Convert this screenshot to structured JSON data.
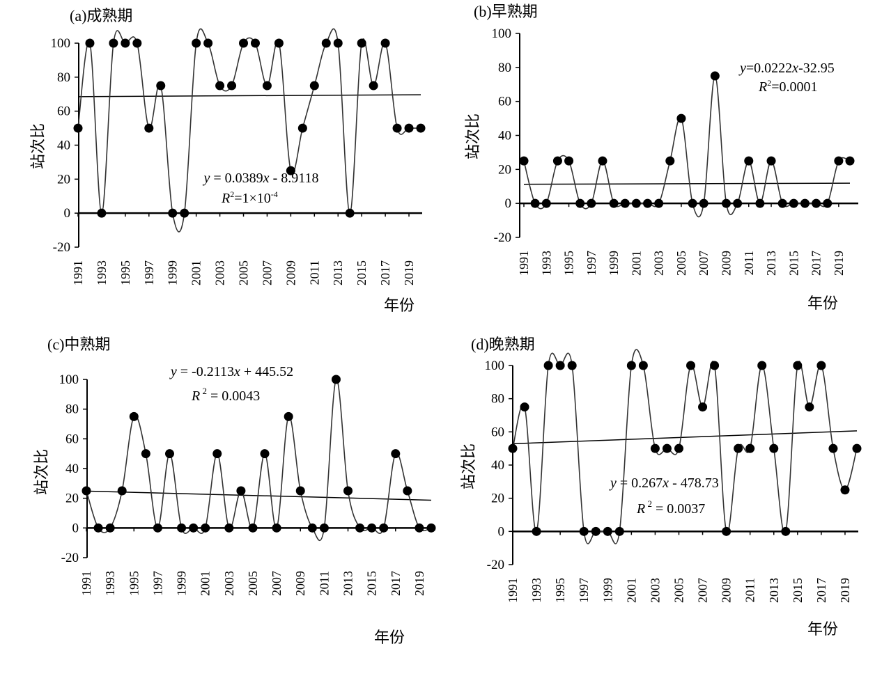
{
  "figure": {
    "y_ticks": [
      "100",
      "80",
      "60",
      "40",
      "20",
      "0",
      "-20"
    ],
    "x_ticks": [
      "1991",
      "1993",
      "1995",
      "1997",
      "1999",
      "2001",
      "2003",
      "2005",
      "2007",
      "2009",
      "2011",
      "2013",
      "2015",
      "2017",
      "2019"
    ]
  },
  "chart_data": [
    {
      "type": "line",
      "title": "(a)成熟期",
      "xlabel": "年份",
      "ylabel": "站次比",
      "ylim": [
        -20,
        100
      ],
      "x": [
        1991,
        1992,
        1993,
        1994,
        1995,
        1996,
        1997,
        1998,
        1999,
        2000,
        2001,
        2002,
        2003,
        2004,
        2005,
        2006,
        2007,
        2008,
        2009,
        2010,
        2011,
        2012,
        2013,
        2014,
        2015,
        2016,
        2017,
        2018,
        2019,
        2020
      ],
      "series": [
        {
          "values": [
            50,
            100,
            0,
            100,
            100,
            100,
            50,
            75,
            0,
            0,
            100,
            100,
            75,
            75,
            100,
            100,
            75,
            100,
            25,
            50,
            75,
            100,
            100,
            0,
            100,
            75,
            100,
            50,
            50,
            50
          ]
        }
      ],
      "trendline": {
        "slope": 0.0389,
        "intercept": -8.9118,
        "equation_text": "y = 0.0389x - 8.9118",
        "r2_text": "R2=1×10-4"
      }
    },
    {
      "type": "line",
      "title": "(b)早熟期",
      "xlabel": "年份",
      "ylabel": "站次比",
      "ylim": [
        -20,
        100
      ],
      "x": [
        1991,
        1992,
        1993,
        1994,
        1995,
        1996,
        1997,
        1998,
        1999,
        2000,
        2001,
        2002,
        2003,
        2004,
        2005,
        2006,
        2007,
        2008,
        2009,
        2010,
        2011,
        2012,
        2013,
        2014,
        2015,
        2016,
        2017,
        2018,
        2019,
        2020
      ],
      "series": [
        {
          "values": [
            25,
            0,
            0,
            25,
            25,
            0,
            0,
            25,
            0,
            0,
            0,
            0,
            0,
            25,
            50,
            0,
            0,
            75,
            0,
            0,
            25,
            0,
            25,
            0,
            0,
            0,
            0,
            0,
            25,
            25
          ]
        }
      ],
      "trendline": {
        "slope": 0.0222,
        "intercept": -32.95,
        "equation_text": "y=0.0222x-32.95",
        "r2_text": "R2=0.0001"
      }
    },
    {
      "type": "line",
      "title": "(c)中熟期",
      "xlabel": "年份",
      "ylabel": "站次比",
      "ylim": [
        -20,
        100
      ],
      "x": [
        1991,
        1992,
        1993,
        1994,
        1995,
        1996,
        1997,
        1998,
        1999,
        2000,
        2001,
        2002,
        2003,
        2004,
        2005,
        2006,
        2007,
        2008,
        2009,
        2010,
        2011,
        2012,
        2013,
        2014,
        2015,
        2016,
        2017,
        2018,
        2019,
        2020
      ],
      "series": [
        {
          "values": [
            25,
            0,
            0,
            25,
            75,
            50,
            0,
            50,
            0,
            0,
            0,
            50,
            0,
            25,
            0,
            50,
            0,
            75,
            25,
            0,
            0,
            100,
            25,
            0,
            0,
            0,
            50,
            25,
            0,
            0
          ]
        }
      ],
      "trendline": {
        "slope": -0.2113,
        "intercept": 445.52,
        "equation_text": "y = -0.2113x + 445.52",
        "r2_text": "R 2 = 0.0043"
      }
    },
    {
      "type": "line",
      "title": "(d)晚熟期",
      "xlabel": "年份",
      "ylabel": "站次比",
      "ylim": [
        -20,
        100
      ],
      "x": [
        1991,
        1992,
        1993,
        1994,
        1995,
        1996,
        1997,
        1998,
        1999,
        2000,
        2001,
        2002,
        2003,
        2004,
        2005,
        2006,
        2007,
        2008,
        2009,
        2010,
        2011,
        2012,
        2013,
        2014,
        2015,
        2016,
        2017,
        2018,
        2019,
        2020
      ],
      "series": [
        {
          "values": [
            50,
            75,
            0,
            100,
            100,
            100,
            0,
            0,
            0,
            0,
            100,
            100,
            50,
            50,
            50,
            100,
            75,
            100,
            0,
            50,
            50,
            100,
            50,
            0,
            100,
            75,
            100,
            50,
            25,
            50
          ]
        }
      ],
      "trendline": {
        "slope": 0.267,
        "intercept": -478.73,
        "equation_text": "y = 0.267x - 478.73",
        "r2_text": "R 2 = 0.0037"
      }
    }
  ]
}
